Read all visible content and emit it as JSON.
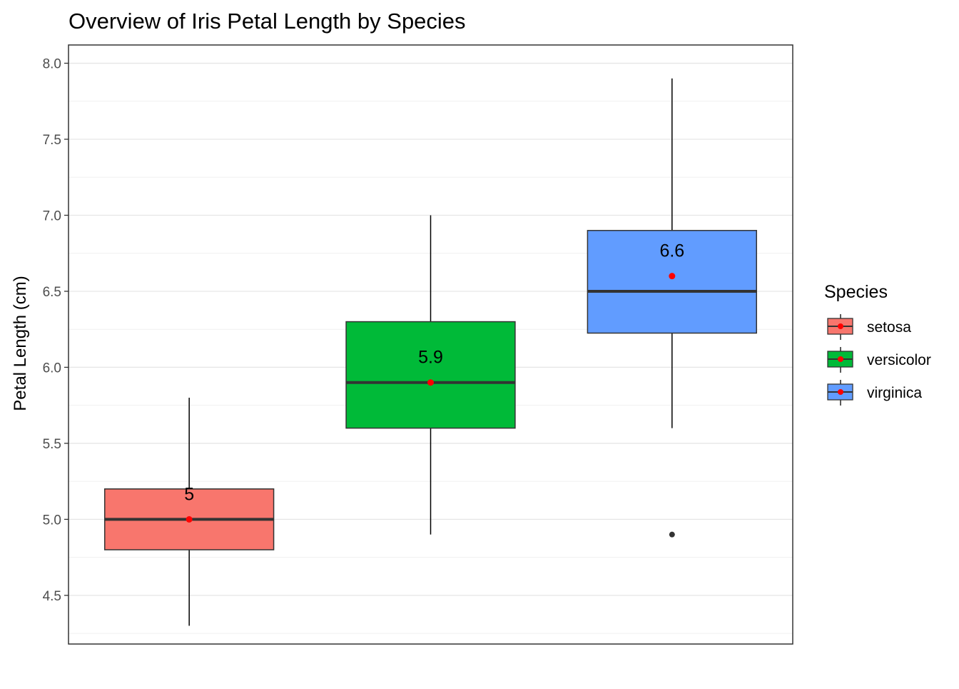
{
  "chart_data": {
    "type": "boxplot",
    "title": "Overview of Iris Petal Length by Species",
    "xlabel": "",
    "ylabel": "Petal Length (cm)",
    "ylim": [
      4.18,
      8.12
    ],
    "y_ticks": [
      4.5,
      5.0,
      5.5,
      6.0,
      6.5,
      7.0,
      7.5,
      8.0
    ],
    "y_tick_labels": [
      "4.5",
      "5.0",
      "5.5",
      "6.0",
      "6.5",
      "7.0",
      "7.5",
      "8.0"
    ],
    "grid": true,
    "x_tick_labels_shown": false,
    "legend": {
      "title": "Species",
      "position": "right"
    },
    "series": [
      {
        "name": "setosa",
        "color": "#F8766D",
        "min": 4.3,
        "q1": 4.8,
        "median": 5.0,
        "q3": 5.2,
        "max": 5.8,
        "outliers": [],
        "mean": 5.0,
        "mean_label": "5"
      },
      {
        "name": "versicolor",
        "color": "#00BA38",
        "min": 4.9,
        "q1": 5.6,
        "median": 5.9,
        "q3": 6.3,
        "max": 7.0,
        "outliers": [],
        "mean": 5.9,
        "mean_label": "5.9"
      },
      {
        "name": "virginica",
        "color": "#619CFF",
        "min": 5.6,
        "q1": 6.225,
        "median": 6.5,
        "q3": 6.9,
        "max": 7.9,
        "outliers": [
          4.9
        ],
        "mean": 6.6,
        "mean_label": "6.6"
      }
    ],
    "mean_marker_color": "#FF0000"
  }
}
